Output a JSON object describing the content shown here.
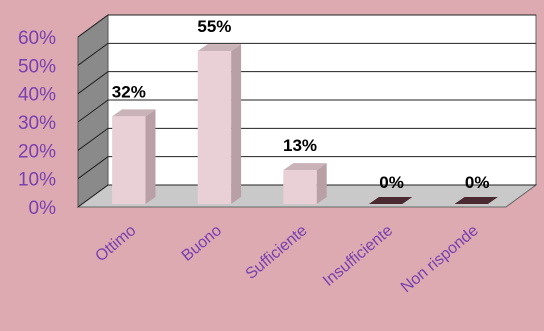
{
  "colors": {
    "background": "#dcaab0",
    "plot_back": "#ffffff",
    "side_wall": "#8a8a8a",
    "floor": "#c9c9c9",
    "bar_front": "#e9d0d6",
    "bar_side": "#b8a0a6",
    "bar_top": "#c9b2b8",
    "tick_text": "#7a3fb0",
    "label_text": "#000000"
  },
  "chart_data": {
    "type": "bar",
    "title": "",
    "xlabel": "",
    "ylabel": "",
    "categories": [
      "Ottimo",
      "Buono",
      "Sufficiente",
      "Insufficiente",
      "Non risponde"
    ],
    "values": [
      32,
      55,
      13,
      0,
      0
    ],
    "data_labels": [
      "32%",
      "55%",
      "13%",
      "0%",
      "0%"
    ],
    "ylim": [
      0,
      60
    ],
    "yticks": [
      0,
      10,
      20,
      30,
      40,
      50,
      60
    ],
    "ytick_labels": [
      "0%",
      "10%",
      "20%",
      "30%",
      "40%",
      "50%",
      "60%"
    ],
    "grid": true,
    "legend": "none",
    "style": "3d"
  }
}
